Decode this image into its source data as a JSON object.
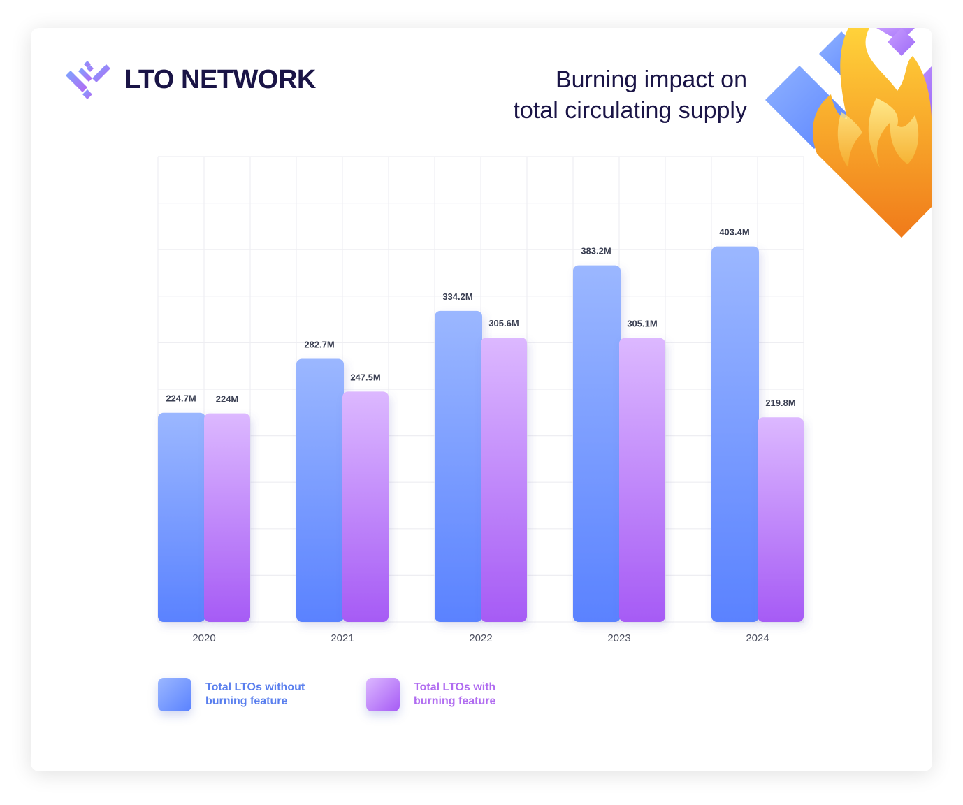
{
  "brand": {
    "name": "LTO NETWORK",
    "icon": "lto-logo-icon"
  },
  "title": {
    "line1": "Burning impact on",
    "line2": "total circulating supply"
  },
  "decoration": {
    "icon": "flame-icon"
  },
  "colors": {
    "without_top": "#9bb7ff",
    "without_bottom": "#5a82ff",
    "with_top": "#dcb8ff",
    "with_bottom": "#a65bf5",
    "without_text": "#5a7fee",
    "with_text": "#b06cf0",
    "title": "#1a1446",
    "value_label": "#3a3f52"
  },
  "legend": [
    {
      "label": "Total LTOs without burning feature",
      "color_key": "without"
    },
    {
      "label": "Total LTOs with burning feature",
      "color_key": "with"
    }
  ],
  "chart_data": {
    "type": "bar",
    "categories": [
      "2020",
      "2021",
      "2022",
      "2023",
      "2024"
    ],
    "series": [
      {
        "name": "Total LTOs without burning feature",
        "values": [
          224.7,
          282.7,
          334.2,
          383.2,
          403.4
        ],
        "labels": [
          "224.7M",
          "282.7M",
          "334.2M",
          "383.2M",
          "403.4M"
        ]
      },
      {
        "name": "Total LTOs with burning feature",
        "values": [
          224,
          247.5,
          305.6,
          305.1,
          219.8
        ],
        "labels": [
          "224M",
          "247.5M",
          "305.6M",
          "305.1M",
          "219.8M"
        ]
      }
    ],
    "ylim": [
      0,
      500
    ],
    "grid": true,
    "legend_position": "bottom-left",
    "xlabel": "",
    "ylabel": ""
  }
}
